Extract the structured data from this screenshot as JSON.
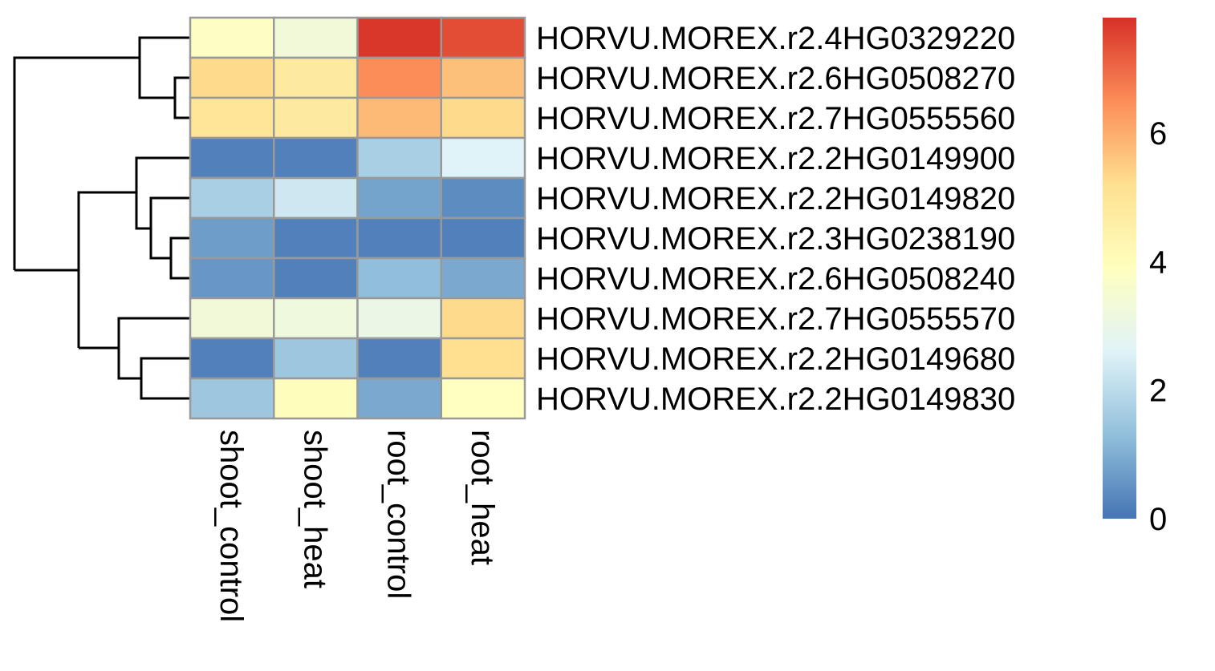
{
  "chart_data": {
    "type": "heatmap",
    "columns": [
      "shoot_control",
      "shoot_heat",
      "root_control",
      "root_heat"
    ],
    "rows": [
      "HORVU.MOREX.r2.4HG0329220",
      "HORVU.MOREX.r2.6HG0508270",
      "HORVU.MOREX.r2.7HG0555560",
      "HORVU.MOREX.r2.2HG0149900",
      "HORVU.MOREX.r2.2HG0149820",
      "HORVU.MOREX.r2.3HG0238190",
      "HORVU.MOREX.r2.6HG0508240",
      "HORVU.MOREX.r2.7HG0555570",
      "HORVU.MOREX.r2.2HG0149680",
      "HORVU.MOREX.r2.2HG0149830"
    ],
    "values": [
      [
        3.8,
        3.3,
        7.7,
        7.4
      ],
      [
        5.3,
        4.8,
        6.5,
        5.7
      ],
      [
        5.0,
        4.8,
        5.8,
        5.3
      ],
      [
        0.2,
        0.2,
        1.7,
        2.6
      ],
      [
        1.7,
        2.3,
        0.8,
        0.4
      ],
      [
        0.7,
        0.2,
        0.2,
        0.2
      ],
      [
        0.6,
        0.2,
        1.3,
        0.9
      ],
      [
        3.3,
        3.2,
        3.0,
        5.3
      ],
      [
        0.2,
        1.5,
        0.2,
        5.2
      ],
      [
        1.5,
        4.0,
        0.9,
        3.9
      ]
    ],
    "colorbar": {
      "min": 0,
      "max": 7.8,
      "ticks": [
        0,
        2,
        4,
        6
      ]
    },
    "row_dendrogram": true,
    "colors": [
      "#4575B4",
      "#91BFDB",
      "#E0F3F8",
      "#FFFFBF",
      "#FEE090",
      "#FC8D59",
      "#D73027"
    ],
    "cell_border_color": "#999999"
  }
}
